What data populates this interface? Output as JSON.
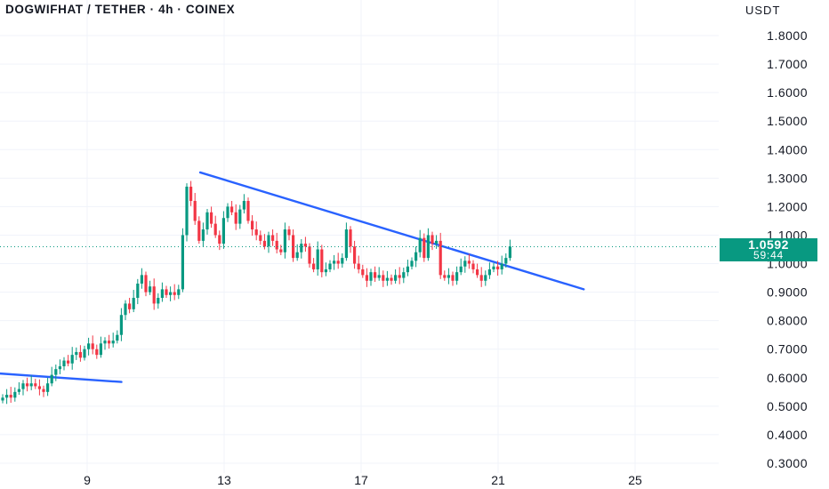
{
  "header": {
    "title": "DOGWIFHAT / TETHER · 4h · COINEX",
    "currency": "USDT"
  },
  "price_tag": {
    "price": "1.0592",
    "countdown": "59:44",
    "color": "#089981"
  },
  "colors": {
    "up": "#089981",
    "down": "#f23645",
    "trendline": "#2962ff",
    "grid": "#f0f3fa",
    "last_price_line": "#089981"
  },
  "chart_data": {
    "type": "candlestick",
    "title": "DOGWIFHAT / TETHER · 4h · COINEX",
    "y_axis": {
      "label": "USDT",
      "ticks": [
        1.8,
        1.7,
        1.6,
        1.5,
        1.4,
        1.3,
        1.2,
        1.1,
        1.0,
        0.9,
        0.8,
        0.7,
        0.6,
        0.5,
        0.4,
        0.3
      ],
      "tick_labels": [
        "1.8000",
        "1.7000",
        "1.6000",
        "1.5000",
        "1.4000",
        "1.3000",
        "1.2000",
        "1.1000",
        "1.0000",
        "0.9000",
        "0.8000",
        "0.7000",
        "0.6000",
        "0.5000",
        "0.4000",
        "0.3000"
      ],
      "range": [
        0.28,
        1.88
      ]
    },
    "x_axis": {
      "tick_labels": [
        "9",
        "13",
        "17",
        "21",
        "25"
      ],
      "tick_days": [
        9,
        13,
        17,
        21,
        25
      ],
      "range_days": [
        6.4,
        27.2
      ]
    },
    "last_price": 1.0592,
    "candles_close": [
      0.53,
      0.54,
      0.53,
      0.55,
      0.56,
      0.58,
      0.57,
      0.58,
      0.57,
      0.56,
      0.55,
      0.58,
      0.61,
      0.63,
      0.64,
      0.66,
      0.65,
      0.68,
      0.69,
      0.67,
      0.7,
      0.72,
      0.7,
      0.68,
      0.72,
      0.73,
      0.72,
      0.73,
      0.75,
      0.82,
      0.86,
      0.84,
      0.88,
      0.93,
      0.96,
      0.9,
      0.92,
      0.86,
      0.88,
      0.91,
      0.89,
      0.9,
      0.89,
      0.91,
      1.1,
      1.27,
      1.22,
      1.15,
      1.08,
      1.12,
      1.18,
      1.14,
      1.1,
      1.07,
      1.16,
      1.2,
      1.18,
      1.14,
      1.19,
      1.22,
      1.15,
      1.12,
      1.1,
      1.08,
      1.06,
      1.1,
      1.08,
      1.05,
      1.04,
      1.12,
      1.1,
      1.02,
      1.04,
      1.07,
      1.06,
      1.0,
      0.98,
      1.05,
      0.97,
      0.98,
      1.0,
      1.01,
      1.0,
      1.02,
      1.12,
      1.06,
      1.0,
      0.98,
      0.96,
      0.94,
      0.97,
      0.95,
      0.96,
      0.94,
      0.95,
      0.94,
      0.96,
      0.95,
      0.97,
      0.99,
      1.01,
      1.04,
      1.09,
      1.02,
      1.1,
      1.07,
      1.08,
      0.96,
      0.95,
      0.96,
      0.94,
      0.97,
      0.99,
      1.01,
      1.0,
      0.98,
      0.96,
      0.94,
      0.96,
      0.98,
      0.99,
      0.98,
      1.0,
      1.02,
      1.06
    ],
    "trendlines": [
      {
        "from_day": 12.3,
        "from_price": 1.32,
        "to_day": 23.5,
        "to_price": 0.91
      },
      {
        "from_day": 6.4,
        "from_price": 0.615,
        "to_day": 10.0,
        "to_price": 0.585
      }
    ]
  }
}
